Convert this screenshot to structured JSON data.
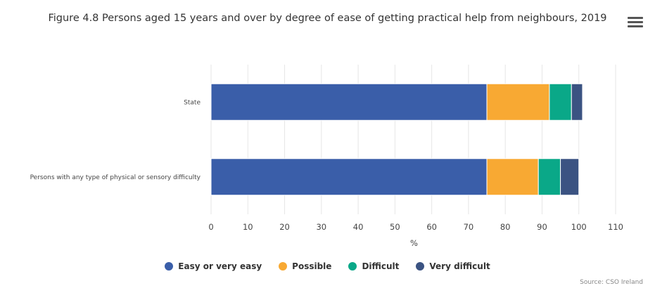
{
  "title": "Figure 4.8 Persons aged 15 years and over by degree of ease of getting practical help from neighbours, 2019",
  "credit": "Source: CSO Ireland",
  "chart_data": {
    "type": "bar",
    "orientation": "horizontal",
    "stacked": true,
    "categories": [
      "State",
      "Persons with any type of physical or sensory difficulty"
    ],
    "series": [
      {
        "name": "Easy or very easy",
        "color": "#3a5ea9",
        "values": [
          75,
          75
        ]
      },
      {
        "name": "Possible",
        "color": "#f8a933",
        "values": [
          17,
          14
        ]
      },
      {
        "name": "Difficult",
        "color": "#0aa888",
        "values": [
          6,
          6
        ]
      },
      {
        "name": "Very difficult",
        "color": "#3b5382",
        "values": [
          3,
          5
        ]
      }
    ],
    "xlabel": "%",
    "xlim": [
      0,
      110
    ],
    "xticks": [
      0,
      10,
      20,
      30,
      40,
      50,
      60,
      70,
      80,
      90,
      100,
      110
    ],
    "grid": true,
    "legend_position": "bottom"
  }
}
